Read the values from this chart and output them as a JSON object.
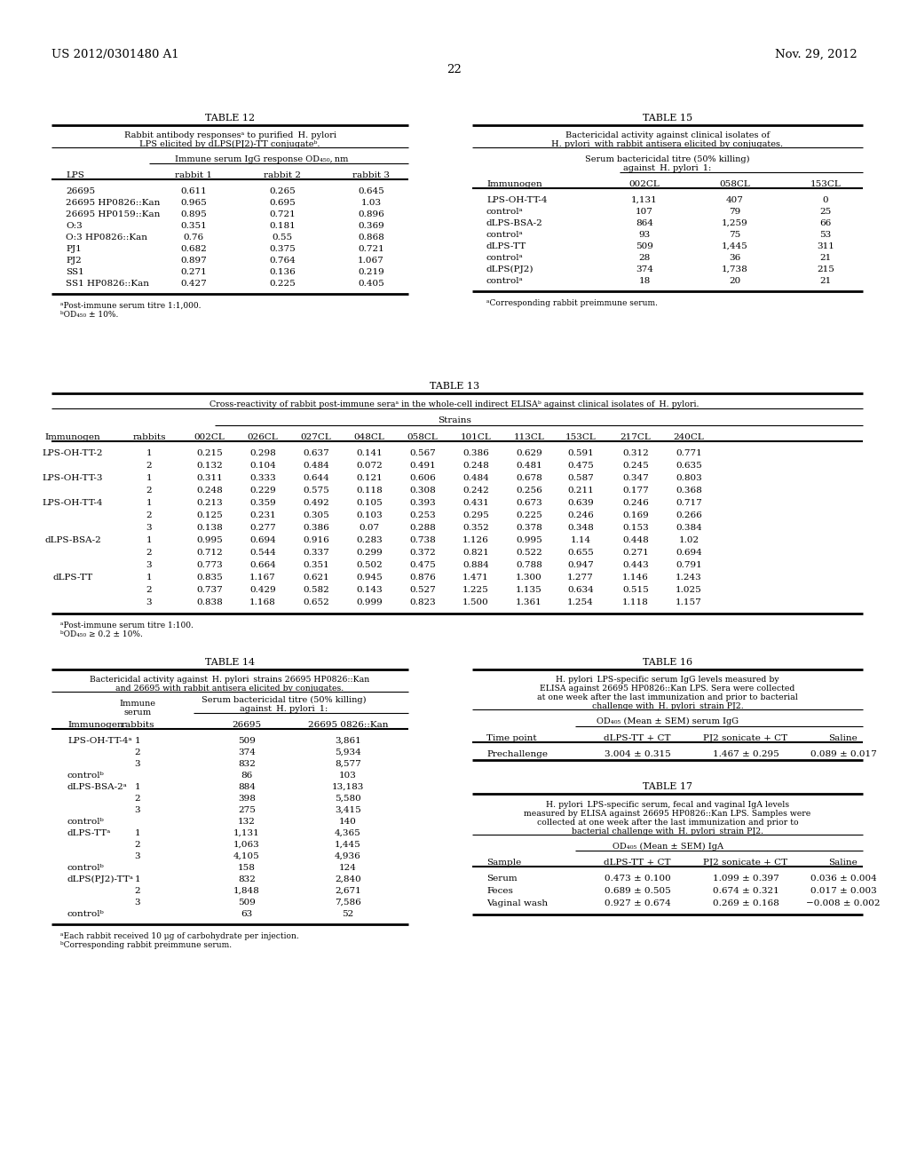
{
  "bg_color": "#ffffff",
  "header_left": "US 2012/0301480 A1",
  "header_right": "Nov. 29, 2012",
  "page_num": "22"
}
